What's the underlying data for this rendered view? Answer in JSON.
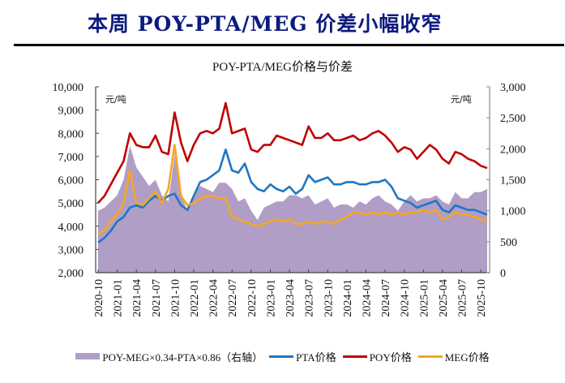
{
  "headline": "本周 POY-PTA/MEG 价差小幅收窄",
  "chart_data": {
    "type": "line",
    "title": "POY-PTA/MEG价格与价差",
    "left_unit": "元/吨",
    "right_unit": "元/吨",
    "ylim_left": [
      2000,
      10000
    ],
    "ylim_right": [
      0,
      3000
    ],
    "yticks_left": [
      "2,000",
      "3,000",
      "4,000",
      "5,000",
      "6,000",
      "7,000",
      "8,000",
      "9,000",
      "10,000"
    ],
    "yticks_right": [
      "0",
      "500",
      "1,000",
      "1,500",
      "2,000",
      "2,500",
      "3,000"
    ],
    "xtick_labels": [
      "2020-10",
      "2021-01",
      "2021-04",
      "2021-07",
      "2021-10",
      "2022-01",
      "2022-04",
      "2022-07",
      "2022-10",
      "2023-01",
      "2023-04",
      "2023-07",
      "2023-10",
      "2024-01",
      "2024-04",
      "2024-07",
      "2024-10",
      "2025-01",
      "2025-04",
      "2025-07",
      "2025-10"
    ],
    "months": [
      "2020-10",
      "2020-11",
      "2020-12",
      "2021-01",
      "2021-02",
      "2021-03",
      "2021-04",
      "2021-05",
      "2021-06",
      "2021-07",
      "2021-08",
      "2021-09",
      "2021-10",
      "2021-11",
      "2021-12",
      "2022-01",
      "2022-02",
      "2022-03",
      "2022-04",
      "2022-05",
      "2022-06",
      "2022-07",
      "2022-08",
      "2022-09",
      "2022-10",
      "2022-11",
      "2022-12",
      "2023-01",
      "2023-02",
      "2023-03",
      "2023-04",
      "2023-05",
      "2023-06",
      "2023-07",
      "2023-08",
      "2023-09",
      "2023-10",
      "2023-11",
      "2023-12",
      "2024-01",
      "2024-02",
      "2024-03",
      "2024-04",
      "2024-05",
      "2024-06",
      "2024-07",
      "2024-08",
      "2024-09",
      "2024-10",
      "2024-11",
      "2024-12",
      "2025-01",
      "2025-02",
      "2025-03",
      "2025-04",
      "2025-05",
      "2025-06",
      "2025-07",
      "2025-08",
      "2025-09",
      "2025-10",
      "2025-11"
    ],
    "series": [
      {
        "name": "POY-MEG×0.34-PTA×0.86（右轴）",
        "axis": "right",
        "kind": "area",
        "color": "#b09ec6",
        "values": [
          1000,
          1050,
          1150,
          1250,
          1500,
          2050,
          1700,
          1550,
          1400,
          1500,
          1250,
          1150,
          1900,
          1250,
          1000,
          1250,
          1400,
          1350,
          1300,
          1450,
          1450,
          1350,
          1150,
          1200,
          1000,
          850,
          1050,
          1100,
          1150,
          1150,
          1250,
          1250,
          1200,
          1250,
          1100,
          1150,
          1200,
          1050,
          1100,
          1100,
          1050,
          1150,
          1100,
          1200,
          1250,
          1150,
          1100,
          1000,
          1150,
          1250,
          1150,
          1200,
          1200,
          1250,
          1150,
          1100,
          1300,
          1200,
          1200,
          1300,
          1300,
          1350
        ]
      },
      {
        "name": "PTA价格",
        "axis": "left",
        "kind": "line",
        "color": "#1f77c4",
        "values": [
          3300,
          3500,
          3800,
          4200,
          4400,
          4800,
          4900,
          4800,
          5100,
          5300,
          5100,
          5300,
          5400,
          4900,
          4700,
          5300,
          5900,
          6000,
          6200,
          6400,
          7300,
          6400,
          6300,
          6700,
          5900,
          5600,
          5500,
          5800,
          5600,
          5500,
          5700,
          5400,
          5600,
          6200,
          5900,
          6000,
          6100,
          5800,
          5800,
          5900,
          5900,
          5800,
          5800,
          5900,
          5900,
          6000,
          5700,
          5200,
          5100,
          5000,
          4800,
          4900,
          5000,
          5100,
          4700,
          4600,
          4900,
          4800,
          4700,
          4700,
          4600,
          4500
        ]
      },
      {
        "name": "POY价格",
        "axis": "left",
        "kind": "line",
        "color": "#c00000",
        "values": [
          5000,
          5300,
          5800,
          6300,
          6800,
          8000,
          7500,
          7400,
          7400,
          7900,
          7200,
          7100,
          8900,
          7600,
          6800,
          7500,
          8000,
          8100,
          8000,
          8200,
          9300,
          8000,
          8100,
          8200,
          7300,
          7200,
          7500,
          7500,
          7900,
          7800,
          7700,
          7600,
          7500,
          8300,
          7800,
          7800,
          8000,
          7700,
          7700,
          7800,
          7900,
          7700,
          7800,
          8000,
          8100,
          7900,
          7600,
          7200,
          7400,
          7300,
          6900,
          7200,
          7500,
          7300,
          6900,
          6700,
          7200,
          7100,
          6900,
          6800,
          6600,
          6500
        ]
      },
      {
        "name": "MEG价格",
        "axis": "left",
        "kind": "line",
        "color": "#f5a623",
        "values": [
          3700,
          3800,
          4200,
          4500,
          5000,
          6400,
          5000,
          4900,
          5200,
          5500,
          5000,
          5600,
          7500,
          5300,
          4900,
          5000,
          5200,
          5300,
          5300,
          5200,
          5200,
          4400,
          4300,
          4200,
          4100,
          4000,
          4100,
          4200,
          4300,
          4200,
          4300,
          4100,
          4100,
          4200,
          4100,
          4200,
          4200,
          4100,
          4300,
          4400,
          4600,
          4600,
          4500,
          4600,
          4500,
          4600,
          4500,
          4600,
          4500,
          4600,
          4600,
          4700,
          4600,
          4700,
          4300,
          4400,
          4600,
          4500,
          4500,
          4400,
          4300,
          4200
        ]
      }
    ],
    "legend_position": "bottom",
    "grid": false
  }
}
